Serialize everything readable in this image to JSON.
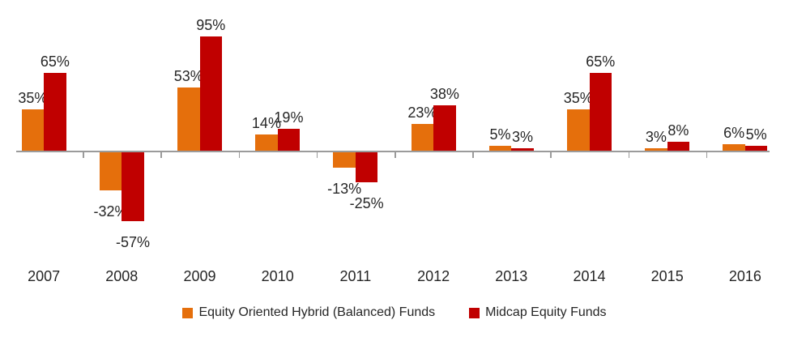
{
  "chart_data": {
    "type": "bar",
    "categories": [
      "2007",
      "2008",
      "2009",
      "2010",
      "2011",
      "2012",
      "2013",
      "2014",
      "2015",
      "2016"
    ],
    "series": [
      {
        "name": "Equity Oriented Hybrid (Balanced) Funds",
        "color": "#E56F0C",
        "values": [
          35,
          -32,
          53,
          14,
          -13,
          23,
          5,
          35,
          3,
          6
        ]
      },
      {
        "name": "Midcap Equity Funds",
        "color": "#C00000",
        "values": [
          65,
          -57,
          95,
          19,
          -25,
          38,
          3,
          65,
          8,
          5
        ]
      }
    ],
    "value_suffix": "%",
    "data_labels": true,
    "ylim": [
      -70,
      100
    ],
    "grid": false,
    "legend_position": "bottom",
    "axis_color": "#9B9B9B",
    "text_color": "#262626"
  }
}
